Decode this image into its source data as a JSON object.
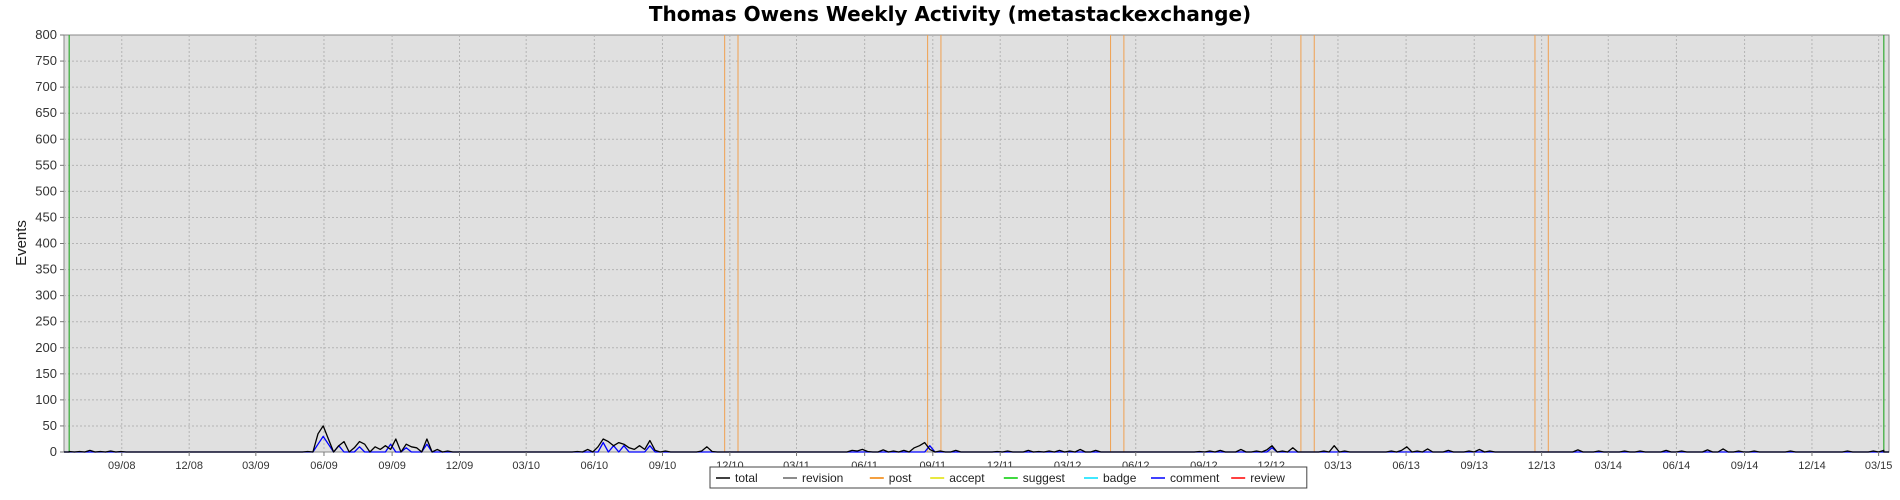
{
  "chart_data": {
    "type": "line",
    "title": "Thomas Owens Weekly Activity (metastackexchange)",
    "ylabel": "Events",
    "xlabel": "",
    "ylim": [
      0,
      800
    ],
    "xlim": [
      "2008-06-15",
      "2015-03-15"
    ],
    "yticks": [
      0,
      50,
      100,
      150,
      200,
      250,
      300,
      350,
      400,
      450,
      500,
      550,
      600,
      650,
      700,
      750,
      800
    ],
    "xticks": [
      {
        "label": "09/08",
        "date": "2008-09-01"
      },
      {
        "label": "12/08",
        "date": "2008-12-01"
      },
      {
        "label": "03/09",
        "date": "2009-03-01"
      },
      {
        "label": "06/09",
        "date": "2009-06-01"
      },
      {
        "label": "09/09",
        "date": "2009-09-01"
      },
      {
        "label": "12/09",
        "date": "2009-12-01"
      },
      {
        "label": "03/10",
        "date": "2010-03-01"
      },
      {
        "label": "06/10",
        "date": "2010-06-01"
      },
      {
        "label": "09/10",
        "date": "2010-09-01"
      },
      {
        "label": "12/10",
        "date": "2010-12-01"
      },
      {
        "label": "03/11",
        "date": "2011-03-01"
      },
      {
        "label": "06/11",
        "date": "2011-06-01"
      },
      {
        "label": "09/11",
        "date": "2011-09-01"
      },
      {
        "label": "12/11",
        "date": "2011-12-01"
      },
      {
        "label": "03/12",
        "date": "2012-03-01"
      },
      {
        "label": "06/12",
        "date": "2012-06-01"
      },
      {
        "label": "09/12",
        "date": "2012-09-01"
      },
      {
        "label": "12/12",
        "date": "2012-12-01"
      },
      {
        "label": "03/13",
        "date": "2013-03-01"
      },
      {
        "label": "06/13",
        "date": "2013-06-01"
      },
      {
        "label": "09/13",
        "date": "2013-09-01"
      },
      {
        "label": "12/13",
        "date": "2013-12-01"
      },
      {
        "label": "03/14",
        "date": "2014-03-01"
      },
      {
        "label": "06/14",
        "date": "2014-06-01"
      },
      {
        "label": "09/14",
        "date": "2014-09-01"
      },
      {
        "label": "12/14",
        "date": "2014-12-01"
      },
      {
        "label": "03/15",
        "date": "2015-03-01"
      }
    ],
    "grid": true,
    "legend_position": "bottom-center",
    "markers": {
      "green_lines": [
        "2008-06-22",
        "2015-03-08"
      ],
      "orange_lines": [
        "2010-11-24",
        "2010-12-12",
        "2011-08-25",
        "2011-09-12",
        "2012-04-28",
        "2012-05-16",
        "2013-01-10",
        "2013-01-28",
        "2013-11-22",
        "2013-12-10"
      ]
    },
    "series": [
      {
        "name": "total",
        "color": "#000000",
        "x": [
          "2008-06-22",
          "2008-07-06",
          "2008-07-20",
          "2008-08-03",
          "2008-08-17",
          "2008-08-31",
          "2009-05-10",
          "2009-05-24",
          "2009-05-31",
          "2009-06-07",
          "2009-06-21",
          "2009-06-28",
          "2009-07-12",
          "2009-07-19",
          "2009-07-26",
          "2009-08-09",
          "2009-08-16",
          "2009-08-23",
          "2009-08-30",
          "2009-09-06",
          "2009-09-20",
          "2009-09-27",
          "2009-10-04",
          "2009-10-18",
          "2009-11-01",
          "2009-11-15",
          "2010-05-09",
          "2010-05-23",
          "2010-06-06",
          "2010-06-13",
          "2010-06-20",
          "2010-06-27",
          "2010-07-04",
          "2010-07-11",
          "2010-07-18",
          "2010-07-25",
          "2010-08-01",
          "2010-08-08",
          "2010-08-15",
          "2010-08-22",
          "2010-09-05",
          "2010-10-24",
          "2010-10-31",
          "2010-11-07",
          "2011-05-15",
          "2011-05-22",
          "2011-05-29",
          "2011-06-05",
          "2011-06-26",
          "2011-07-10",
          "2011-07-24",
          "2011-08-07",
          "2011-08-14",
          "2011-08-21",
          "2011-08-28",
          "2011-09-11",
          "2011-10-02",
          "2011-11-27",
          "2011-12-11",
          "2012-01-08",
          "2012-01-22",
          "2012-02-05",
          "2012-02-19",
          "2012-03-04",
          "2012-03-18",
          "2012-04-08",
          "2012-08-26",
          "2012-09-09",
          "2012-09-23",
          "2012-10-21",
          "2012-11-11",
          "2012-11-25",
          "2012-12-02",
          "2012-12-16",
          "2012-12-30",
          "2013-02-10",
          "2013-02-24",
          "2013-03-10",
          "2013-05-12",
          "2013-05-26",
          "2013-06-02",
          "2013-06-16",
          "2013-06-30",
          "2013-07-28",
          "2013-08-25",
          "2013-09-08",
          "2013-09-22",
          "2014-01-19",
          "2014-02-16",
          "2014-03-23",
          "2014-04-13",
          "2014-05-18",
          "2014-06-08",
          "2014-07-13",
          "2014-08-03",
          "2014-08-24",
          "2014-09-14",
          "2014-11-02",
          "2015-01-18",
          "2015-02-22",
          "2015-03-08"
        ],
        "y": [
          1,
          1,
          3,
          1,
          2,
          1,
          1,
          35,
          50,
          25,
          12,
          20,
          8,
          20,
          15,
          10,
          5,
          12,
          5,
          25,
          15,
          10,
          8,
          25,
          5,
          2,
          1,
          5,
          10,
          25,
          20,
          12,
          18,
          15,
          8,
          5,
          12,
          5,
          22,
          3,
          2,
          2,
          10,
          1,
          3,
          2,
          5,
          1,
          4,
          2,
          3,
          8,
          12,
          18,
          5,
          2,
          3,
          1,
          2,
          3,
          1,
          2,
          3,
          2,
          5,
          3,
          1,
          2,
          3,
          5,
          2,
          4,
          12,
          2,
          8,
          2,
          12,
          2,
          2,
          3,
          10,
          2,
          6,
          3,
          2,
          5,
          2,
          4,
          2,
          2,
          2,
          3,
          2,
          4,
          6,
          2,
          2,
          2,
          2,
          2,
          3
        ]
      },
      {
        "name": "revision",
        "color": "#666666",
        "x": [],
        "y": []
      },
      {
        "name": "post",
        "color": "#f08000",
        "x": [],
        "y": []
      },
      {
        "name": "accept",
        "color": "#e0e000",
        "x": [],
        "y": []
      },
      {
        "name": "suggest",
        "color": "#00cc00",
        "x": [],
        "y": []
      },
      {
        "name": "badge",
        "color": "#00e0ff",
        "x": [],
        "y": []
      },
      {
        "name": "comment",
        "color": "#0000ff",
        "x": [
          "2009-05-24",
          "2009-05-31",
          "2009-06-07",
          "2009-06-21",
          "2009-07-19",
          "2009-08-30",
          "2009-09-20",
          "2009-10-18",
          "2010-06-13",
          "2010-06-27",
          "2010-07-11",
          "2010-08-15",
          "2011-08-28",
          "2012-12-02"
        ],
        "y": [
          15,
          30,
          15,
          12,
          10,
          15,
          8,
          15,
          18,
          12,
          12,
          12,
          12,
          8
        ]
      },
      {
        "name": "review",
        "color": "#ff0000",
        "x": [],
        "y": []
      }
    ]
  }
}
